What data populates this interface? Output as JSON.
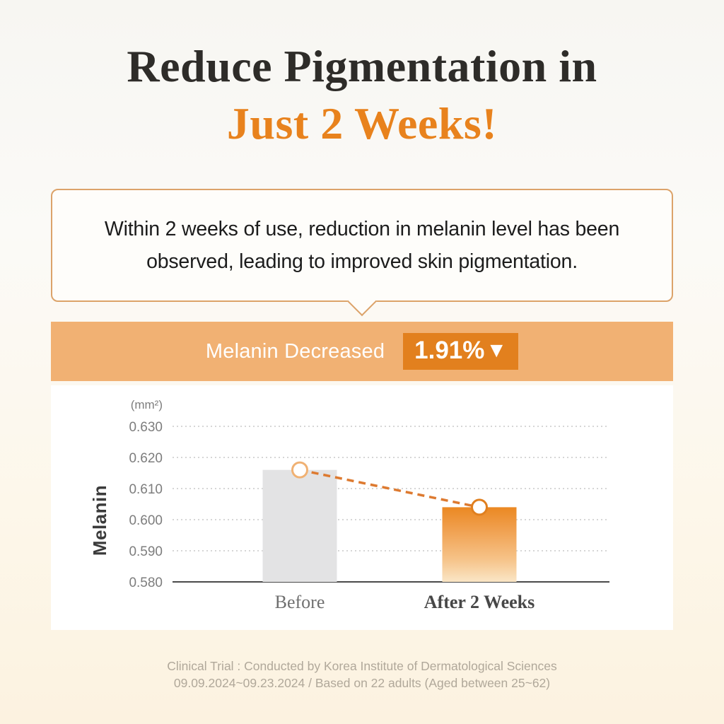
{
  "title": {
    "line1": "Reduce Pigmentation in",
    "line2": "Just 2 Weeks!"
  },
  "callout": {
    "text": "Within 2 weeks of use, reduction in melanin level has been observed, leading to improved skin pigmentation."
  },
  "banner": {
    "label": "Melanin Decreased",
    "value": "1.91%",
    "direction_icon": "▼"
  },
  "chart_data": {
    "type": "bar",
    "title": "Melanin level before vs after 2 weeks",
    "categories": [
      "Before",
      "After 2 Weeks"
    ],
    "values": [
      0.616,
      0.604
    ],
    "unit": "(mm²)",
    "ylabel": "Melanin",
    "xlabel": "",
    "ylim": [
      0.58,
      0.63
    ],
    "yticks": [
      "0.630",
      "0.620",
      "0.610",
      "0.600",
      "0.590",
      "0.580"
    ],
    "grid": true,
    "legend": "none",
    "annotation": "dashed connector with circular markers from Before bar top to After bar top, indicating 1.91% decrease"
  },
  "footnote": {
    "line1": "Clinical Trial : Conducted by Korea Institute of Dermatological Sciences",
    "line2": "09.09.2024~09.23.2024 / Based on  22 adults (Aged between 25~62)"
  },
  "colors": {
    "title_dark": "#2e2c29",
    "accent_orange": "#e8821d",
    "bubble_border": "#dca36a",
    "bubble_bg": "#fefdfa",
    "banner_bg": "#f1b173",
    "badge_bg": "#e2801e",
    "bar_before": "#e3e3e4",
    "bar_after_top": "#eb8822",
    "bar_after_mid": "#f0a04f",
    "bar_after_low": "#f6c389",
    "bar_after_bottom": "#fae6c6",
    "dashed_line": "#dd7a30",
    "marker_before": "#f0b173",
    "marker_after": "#e07f1f",
    "grid": "#c9c9c9",
    "axis_line": "#4a4a4a",
    "tick_text": "#7d7d7d",
    "xlabel_before": "#6f6f6f",
    "xlabel_after": "#474747",
    "footnote": "#b0a89a"
  }
}
